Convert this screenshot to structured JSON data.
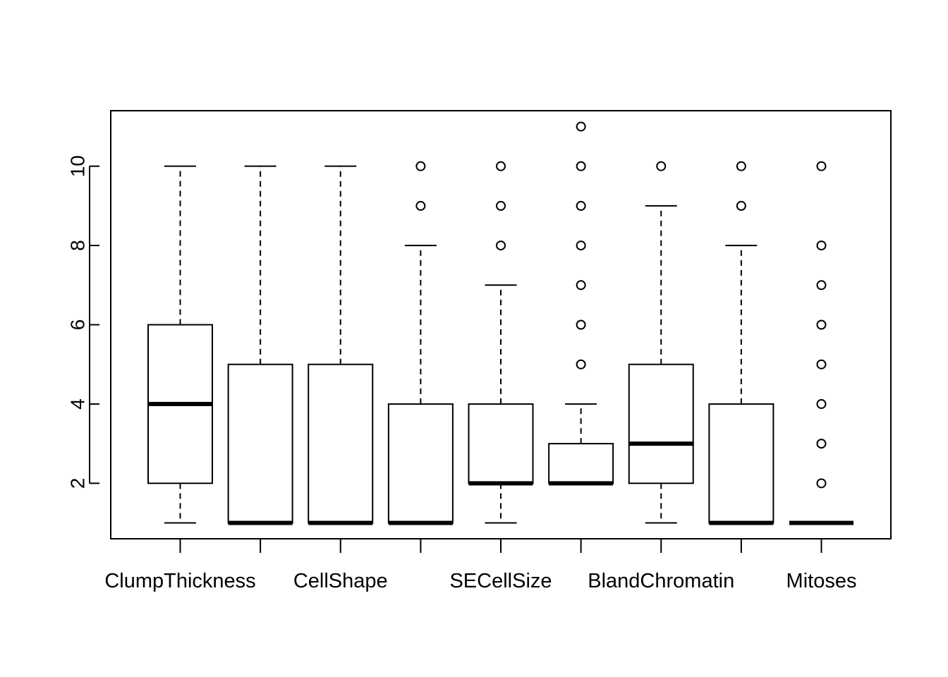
{
  "chart_data": {
    "type": "boxplot",
    "ylim": [
      0.6,
      11.4
    ],
    "y_ticks": [
      2,
      4,
      6,
      8,
      10
    ],
    "y_tick_labels": [
      "2",
      "4",
      "6",
      "8",
      "10"
    ],
    "x_tick_labels_shown": [
      "ClumpThickness",
      "CellShape",
      "SECellSize",
      "BlandChromatin",
      "Mitoses"
    ],
    "grid": false,
    "boxes": [
      {
        "label": "ClumpThickness",
        "label_shown": true,
        "whisker_low": 1,
        "q1": 2,
        "median": 4,
        "q3": 6,
        "whisker_high": 10,
        "outliers": []
      },
      {
        "label": "",
        "label_shown": false,
        "whisker_low": 1,
        "q1": 1,
        "median": 1,
        "q3": 5,
        "whisker_high": 10,
        "outliers": []
      },
      {
        "label": "CellShape",
        "label_shown": true,
        "whisker_low": 1,
        "q1": 1,
        "median": 1,
        "q3": 5,
        "whisker_high": 10,
        "outliers": []
      },
      {
        "label": "",
        "label_shown": false,
        "whisker_low": 1,
        "q1": 1,
        "median": 1,
        "q3": 4,
        "whisker_high": 8,
        "outliers": [
          9,
          10
        ]
      },
      {
        "label": "SECellSize",
        "label_shown": true,
        "whisker_low": 1,
        "q1": 2,
        "median": 2,
        "q3": 4,
        "whisker_high": 7,
        "outliers": [
          8,
          9,
          10
        ]
      },
      {
        "label": "",
        "label_shown": false,
        "whisker_low": 2,
        "q1": 2,
        "median": 2,
        "q3": 3,
        "whisker_high": 4,
        "outliers": [
          5,
          6,
          7,
          8,
          9,
          10,
          11
        ]
      },
      {
        "label": "BlandChromatin",
        "label_shown": true,
        "whisker_low": 1,
        "q1": 2,
        "median": 3,
        "q3": 5,
        "whisker_high": 9,
        "outliers": [
          10
        ]
      },
      {
        "label": "",
        "label_shown": false,
        "whisker_low": 1,
        "q1": 1,
        "median": 1,
        "q3": 4,
        "whisker_high": 8,
        "outliers": [
          9,
          10
        ]
      },
      {
        "label": "Mitoses",
        "label_shown": true,
        "whisker_low": 1,
        "q1": 1,
        "median": 1,
        "q3": 1,
        "whisker_high": 1,
        "outliers": [
          2,
          3,
          4,
          5,
          6,
          7,
          8,
          10
        ]
      }
    ]
  }
}
